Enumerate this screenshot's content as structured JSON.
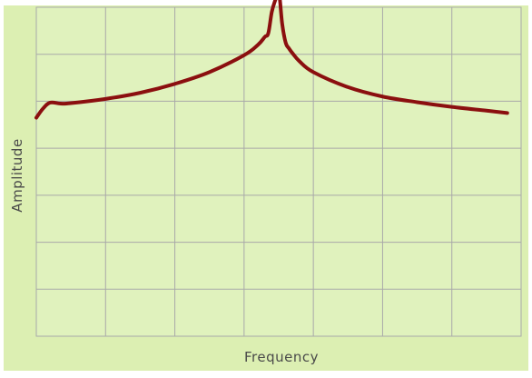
{
  "chart_data": {
    "type": "line",
    "title": "",
    "xlabel": "Frequency",
    "ylabel": "Amplitude",
    "xlim": [
      0,
      7
    ],
    "ylim": [
      0,
      7
    ],
    "grid": true,
    "legend": "none",
    "x_tick_labels": [],
    "y_tick_labels": [],
    "colors": {
      "background": "#dcefb2",
      "plot_area": "#e0f2bd",
      "grid": "#a9a9a9",
      "line": "#8b0f0f"
    },
    "series": [
      {
        "values_note": "",
        "x": [
          0.0,
          0.1,
          0.2,
          0.35,
          0.5,
          1.0,
          1.5,
          2.0,
          2.5,
          3.0,
          3.2,
          3.3,
          3.35,
          3.4,
          3.45,
          3.5,
          3.55,
          3.6,
          3.65,
          3.7,
          3.8,
          4.0,
          4.5,
          5.0,
          5.5,
          6.0,
          6.5,
          6.8
        ],
        "y": [
          4.65,
          4.85,
          4.97,
          4.95,
          4.96,
          5.05,
          5.18,
          5.37,
          5.62,
          5.98,
          6.2,
          6.37,
          6.45,
          6.9,
          7.15,
          7.35,
          6.65,
          6.25,
          6.12,
          6.02,
          5.85,
          5.62,
          5.3,
          5.1,
          4.98,
          4.88,
          4.8,
          4.75
        ]
      }
    ]
  }
}
